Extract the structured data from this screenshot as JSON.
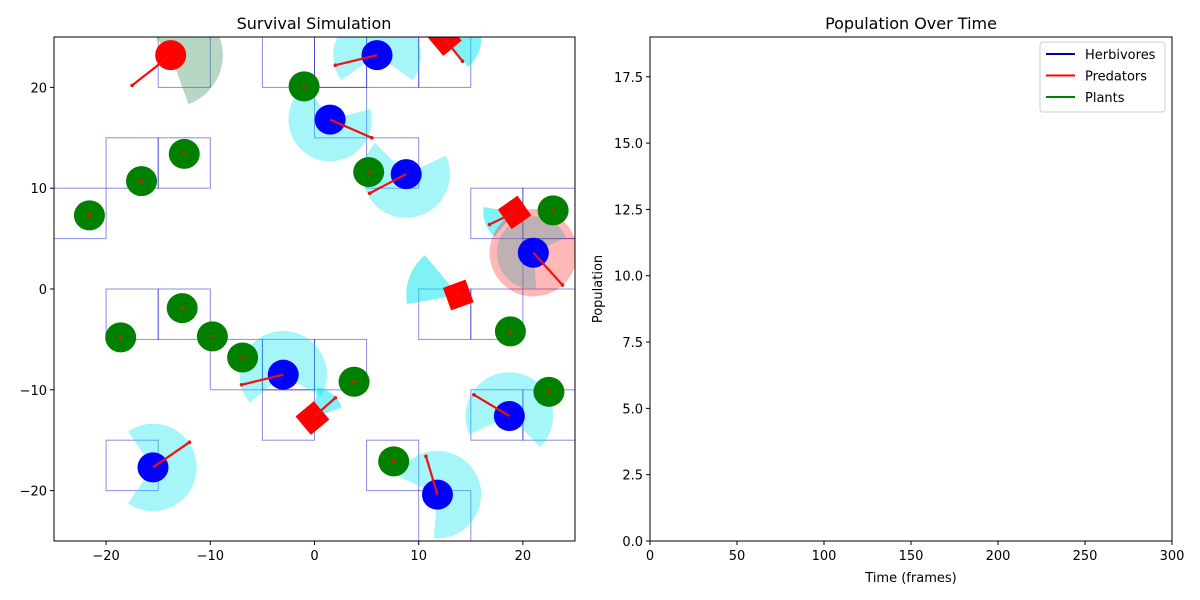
{
  "figure": {
    "background": "#ffffff"
  },
  "chart_data": [
    {
      "type": "scatter",
      "title": "Survival Simulation",
      "xlim": [
        -25,
        25
      ],
      "ylim": [
        -25,
        25
      ],
      "xticks": [
        -20,
        -10,
        0,
        10,
        20
      ],
      "yticks": [
        -20,
        -10,
        0,
        10,
        20
      ],
      "xticklabels": [
        "−20",
        "−10",
        "0",
        "10",
        "20"
      ],
      "yticklabels": [
        "−20",
        "−10",
        "0",
        "10",
        "20"
      ],
      "grid": false,
      "colors": {
        "herbivore": "#0000ff",
        "predator": "#ff0000",
        "plant": "#008000",
        "herbivore_vision": "#00e5ee",
        "predator_vision": "#ff0000",
        "cell_border": "#0000cc",
        "plant_cell_border": "#999966",
        "heading": "#ee1111"
      },
      "cells": [
        {
          "x0": -15,
          "y0": 20,
          "x1": -10,
          "y1": 25
        },
        {
          "x0": -5,
          "y0": 20,
          "x1": 0,
          "y1": 25
        },
        {
          "x0": 0,
          "y0": 20,
          "x1": 5,
          "y1": 25
        },
        {
          "x0": 5,
          "y0": 20,
          "x1": 10,
          "y1": 25
        },
        {
          "x0": 10,
          "y0": 20,
          "x1": 15,
          "y1": 25
        },
        {
          "x0": 0,
          "y0": 15,
          "x1": 5,
          "y1": 20
        },
        {
          "x0": 5,
          "y0": 10,
          "x1": 10,
          "y1": 15
        },
        {
          "x0": -20,
          "y0": 10,
          "x1": -15,
          "y1": 15
        },
        {
          "x0": -15,
          "y0": 10,
          "x1": -10,
          "y1": 15
        },
        {
          "x0": -25,
          "y0": 5,
          "x1": -20,
          "y1": 10
        },
        {
          "x0": 15,
          "y0": 5,
          "x1": 20,
          "y1": 10
        },
        {
          "x0": 20,
          "y0": 5,
          "x1": 25,
          "y1": 10
        },
        {
          "x0": 20,
          "y0": 0,
          "x1": 25,
          "y1": 5
        },
        {
          "x0": -20,
          "y0": -5,
          "x1": -15,
          "y1": 0
        },
        {
          "x0": -15,
          "y0": -5,
          "x1": -10,
          "y1": 0
        },
        {
          "x0": 10,
          "y0": -5,
          "x1": 15,
          "y1": 0
        },
        {
          "x0": 15,
          "y0": -5,
          "x1": 20,
          "y1": 0
        },
        {
          "x0": -10,
          "y0": -10,
          "x1": -5,
          "y1": -5
        },
        {
          "x0": -5,
          "y0": -10,
          "x1": 0,
          "y1": -5
        },
        {
          "x0": 0,
          "y0": -10,
          "x1": 5,
          "y1": -5
        },
        {
          "x0": -5,
          "y0": -15,
          "x1": 0,
          "y1": -10
        },
        {
          "x0": 15,
          "y0": -15,
          "x1": 20,
          "y1": -10
        },
        {
          "x0": 20,
          "y0": -15,
          "x1": 25,
          "y1": -10
        },
        {
          "x0": -20,
          "y0": -20,
          "x1": -15,
          "y1": -15
        },
        {
          "x0": 5,
          "y0": -20,
          "x1": 10,
          "y1": -15
        },
        {
          "x0": 10,
          "y0": -25,
          "x1": 15,
          "y1": -20
        }
      ],
      "herbivores": [
        {
          "x": 6.0,
          "y": 23.2,
          "hx": 2.0,
          "hy": 22.2,
          "vision_dir": 90,
          "vision_r": 4.2
        },
        {
          "x": 1.5,
          "y": 16.8,
          "hx": 5.5,
          "hy": 15.0,
          "vision_dir": 250,
          "vision_r": 4.0
        },
        {
          "x": 8.8,
          "y": 11.4,
          "hx": 5.3,
          "hy": 9.5,
          "vision_dir": 260,
          "vision_r": 4.2
        },
        {
          "x": 21.0,
          "y": 3.6,
          "hx": 23.8,
          "hy": 0.4,
          "vision_dir": 150,
          "vision_r": 3.5
        },
        {
          "x": -3.0,
          "y": -8.5,
          "hx": -7.0,
          "hy": -9.5,
          "vision_dir": 95,
          "vision_r": 4.2
        },
        {
          "x": 18.7,
          "y": -12.6,
          "hx": 15.3,
          "hy": -10.5,
          "vision_dir": 80,
          "vision_r": 4.2
        },
        {
          "x": -15.5,
          "y": -17.7,
          "hx": -12.0,
          "hy": -15.2,
          "vision_dir": 0,
          "vision_r": 4.2
        },
        {
          "x": 11.8,
          "y": -20.4,
          "hx": 10.7,
          "hy": -16.6,
          "vision_dir": 30,
          "vision_r": 4.2
        }
      ],
      "predators": [
        {
          "shape": "circle",
          "x": -13.8,
          "y": 23.2,
          "hx": -17.5,
          "hy": 20.2,
          "vision_dir": 30,
          "vision_r": 5.0
        },
        {
          "shape": "square",
          "x": 12.5,
          "y": 24.8,
          "hx": 14.2,
          "hy": 22.6,
          "vision_dir": 340,
          "vision_r": 3.5,
          "angle": 40
        },
        {
          "shape": "square",
          "x": 19.2,
          "y": 7.6,
          "hx": 16.8,
          "hy": 6.4,
          "vision_dir": 200,
          "vision_r": 3.0,
          "angle": 35
        },
        {
          "shape": "square",
          "x": 13.8,
          "y": -0.6,
          "hx": 13.8,
          "hy": -0.6,
          "vision_dir": 160,
          "vision_r": 5.0,
          "angle": 20
        },
        {
          "shape": "square",
          "x": -0.2,
          "y": -12.8,
          "hx": 2.0,
          "hy": -10.8,
          "vision_dir": 50,
          "vision_r": 3.0,
          "angle": 40
        }
      ],
      "predator_vision_wedges": [
        {
          "x": 21.0,
          "y": 3.6,
          "r": 4.2,
          "theta1": 0,
          "theta2": 360,
          "shade": "red"
        }
      ],
      "plants": [
        {
          "x": -1.0,
          "y": 20.1
        },
        {
          "x": -12.5,
          "y": 13.4
        },
        {
          "x": -16.6,
          "y": 10.7
        },
        {
          "x": -21.6,
          "y": 7.3
        },
        {
          "x": 5.2,
          "y": 11.6
        },
        {
          "x": 22.9,
          "y": 7.8
        },
        {
          "x": -12.7,
          "y": -1.9
        },
        {
          "x": -18.6,
          "y": -4.8
        },
        {
          "x": -9.8,
          "y": -4.7
        },
        {
          "x": -6.9,
          "y": -6.8
        },
        {
          "x": 3.8,
          "y": -9.2
        },
        {
          "x": 18.8,
          "y": -4.2
        },
        {
          "x": 22.5,
          "y": -10.2
        },
        {
          "x": 7.6,
          "y": -17.1
        }
      ]
    },
    {
      "type": "line",
      "title": "Population Over Time",
      "xlabel": "Time (frames)",
      "ylabel": "Population",
      "xlim": [
        0,
        300
      ],
      "ylim": [
        0,
        19
      ],
      "xticks": [
        0,
        50,
        100,
        150,
        200,
        250,
        300
      ],
      "yticks": [
        0.0,
        2.5,
        5.0,
        7.5,
        10.0,
        12.5,
        15.0,
        17.5
      ],
      "xticklabels": [
        "0",
        "50",
        "100",
        "150",
        "200",
        "250",
        "300"
      ],
      "yticklabels": [
        "0.0",
        "2.5",
        "5.0",
        "7.5",
        "10.0",
        "12.5",
        "15.0",
        "17.5"
      ],
      "grid": false,
      "legend": "top-right",
      "series": [
        {
          "name": "Herbivores",
          "color": "#0000aa",
          "x": [],
          "values": []
        },
        {
          "name": "Predators",
          "color": "#ff0000",
          "x": [],
          "values": []
        },
        {
          "name": "Plants",
          "color": "#008000",
          "x": [],
          "values": []
        }
      ]
    }
  ]
}
